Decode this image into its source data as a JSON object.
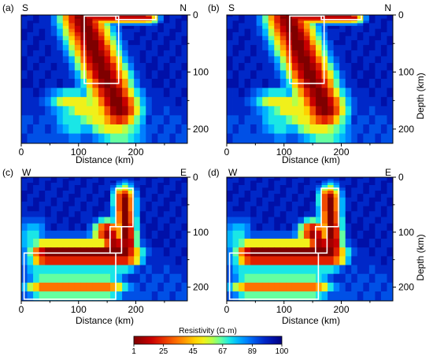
{
  "chart_data": {
    "type": "heatmap",
    "colorbar": {
      "label": "Resistivity (Ω·m)",
      "ticks": [
        "1",
        "25",
        "45",
        "67",
        "89",
        "100"
      ],
      "scale": "log",
      "range": [
        1,
        100
      ],
      "colors": [
        "#7f0000",
        "#a30000",
        "#c80000",
        "#e02000",
        "#f04a00",
        "#ff7300",
        "#ffa000",
        "#ffd000",
        "#f0f01a",
        "#b6ff48",
        "#64ffa0",
        "#1ae6e6",
        "#00b4ff",
        "#0080ff",
        "#0050e6",
        "#0028c8",
        "#0010a8",
        "#00007f"
      ]
    },
    "panels": [
      {
        "id": "a",
        "panel_label": "(a)",
        "left_dir": "S",
        "right_dir": "N",
        "xlabel": "Distance (km)",
        "ylabel": "Depth (km)",
        "xlim": [
          0,
          290
        ],
        "ylim": [
          0,
          225
        ],
        "xticks": [
          0,
          100,
          200
        ],
        "yticks": [
          0,
          100,
          200
        ],
        "show_xlabel": true,
        "show_ylabel": false,
        "bodies": [
          {
            "x": [
              105,
              170
            ],
            "y": [
              5,
              165
            ],
            "w": 38,
            "h": 40,
            "peak": 1.0
          },
          {
            "x": [
              125,
              220
            ],
            "y": [
              5,
              5
            ],
            "w": 20,
            "h": 10,
            "peak": 0.9
          },
          {
            "x": [
              170,
              215
            ],
            "y": [
              0,
              0
            ],
            "w": 16,
            "h": 8,
            "peak": 0.95
          },
          {
            "x": [
              90,
              170
            ],
            "y": [
              150,
              205
            ],
            "w": 48,
            "h": 20,
            "peak": 0.55
          },
          {
            "x": [
              80,
              90
            ],
            "y": [
              150,
              205
            ],
            "w": 36,
            "h": 15,
            "peak": 0.35
          }
        ],
        "boxes": [
          {
            "x": [
              110,
              170
            ],
            "y": [
              2,
              120
            ]
          },
          {
            "x": [
              165,
              235
            ],
            "y": [
              -10,
              8
            ]
          }
        ]
      },
      {
        "id": "b",
        "panel_label": "(b)",
        "left_dir": "S",
        "right_dir": "N",
        "xlabel": "Distance (km)",
        "ylabel": "Depth (km)",
        "xlim": [
          0,
          290
        ],
        "ylim": [
          0,
          225
        ],
        "xticks": [
          0,
          100,
          200
        ],
        "yticks": [
          0,
          100,
          200
        ],
        "show_xlabel": true,
        "show_ylabel": true,
        "bodies": [
          {
            "x": [
              105,
              170
            ],
            "y": [
              5,
              165
            ],
            "w": 38,
            "h": 40,
            "peak": 1.0
          },
          {
            "x": [
              125,
              220
            ],
            "y": [
              5,
              5
            ],
            "w": 20,
            "h": 10,
            "peak": 0.9
          },
          {
            "x": [
              170,
              215
            ],
            "y": [
              0,
              0
            ],
            "w": 16,
            "h": 8,
            "peak": 0.95
          },
          {
            "x": [
              90,
              170
            ],
            "y": [
              150,
              205
            ],
            "w": 48,
            "h": 20,
            "peak": 0.55
          },
          {
            "x": [
              80,
              90
            ],
            "y": [
              150,
              205
            ],
            "w": 36,
            "h": 15,
            "peak": 0.35
          }
        ],
        "boxes": [
          {
            "x": [
              110,
              170
            ],
            "y": [
              2,
              120
            ]
          },
          {
            "x": [
              165,
              235
            ],
            "y": [
              -10,
              8
            ]
          }
        ]
      },
      {
        "id": "c",
        "panel_label": "(c)",
        "left_dir": "W",
        "right_dir": "E",
        "xlabel": "Distance (km)",
        "ylabel": "Depth (km)",
        "xlim": [
          0,
          290
        ],
        "ylim": [
          0,
          225
        ],
        "xticks": [
          0,
          100,
          200
        ],
        "yticks": [
          0,
          100,
          200
        ],
        "show_xlabel": true,
        "show_ylabel": false,
        "bodies": [
          {
            "x": [
              180,
              185
            ],
            "y": [
              40,
              125
            ],
            "w": 18,
            "h": 25,
            "peak": 1.0
          },
          {
            "x": [
              45,
              180
            ],
            "y": [
              140,
              140
            ],
            "w": 30,
            "h": 25,
            "peak": 1.0
          },
          {
            "x": [
              150,
              175
            ],
            "y": [
              100,
              135
            ],
            "w": 24,
            "h": 22,
            "peak": 0.95
          },
          {
            "x": [
              40,
              150
            ],
            "y": [
              200,
              200
            ],
            "w": 36,
            "h": 20,
            "peak": 0.7
          },
          {
            "x": [
              20,
              30
            ],
            "y": [
              110,
              160
            ],
            "w": 30,
            "h": 40,
            "peak": 0.35
          }
        ],
        "boxes": [
          {
            "x": [
              165,
              195
            ],
            "y": [
              20,
              90
            ]
          },
          {
            "x": [
              155,
              175
            ],
            "y": [
              90,
              138
            ]
          },
          {
            "x": [
              5,
              165
            ],
            "y": [
              138,
              222
            ]
          }
        ]
      },
      {
        "id": "d",
        "panel_label": "(d)",
        "left_dir": "W",
        "right_dir": "E",
        "xlabel": "Distance (km)",
        "ylabel": "Depth (km)",
        "xlim": [
          0,
          290
        ],
        "ylim": [
          0,
          225
        ],
        "xticks": [
          0,
          100,
          200
        ],
        "yticks": [
          0,
          100,
          200
        ],
        "show_xlabel": true,
        "show_ylabel": true,
        "bodies": [
          {
            "x": [
              180,
              185
            ],
            "y": [
              40,
              125
            ],
            "w": 18,
            "h": 25,
            "peak": 1.0
          },
          {
            "x": [
              45,
              180
            ],
            "y": [
              140,
              140
            ],
            "w": 30,
            "h": 25,
            "peak": 1.0
          },
          {
            "x": [
              150,
              175
            ],
            "y": [
              100,
              135
            ],
            "w": 24,
            "h": 22,
            "peak": 0.95
          },
          {
            "x": [
              40,
              150
            ],
            "y": [
              200,
              200
            ],
            "w": 36,
            "h": 20,
            "peak": 0.7
          },
          {
            "x": [
              20,
              30
            ],
            "y": [
              110,
              160
            ],
            "w": 30,
            "h": 40,
            "peak": 0.35
          }
        ],
        "boxes": [
          {
            "x": [
              165,
              195
            ],
            "y": [
              20,
              90
            ]
          },
          {
            "x": [
              155,
              175
            ],
            "y": [
              90,
              138
            ]
          },
          {
            "x": [
              5,
              160
            ],
            "y": [
              138,
              222
            ]
          }
        ]
      }
    ]
  }
}
